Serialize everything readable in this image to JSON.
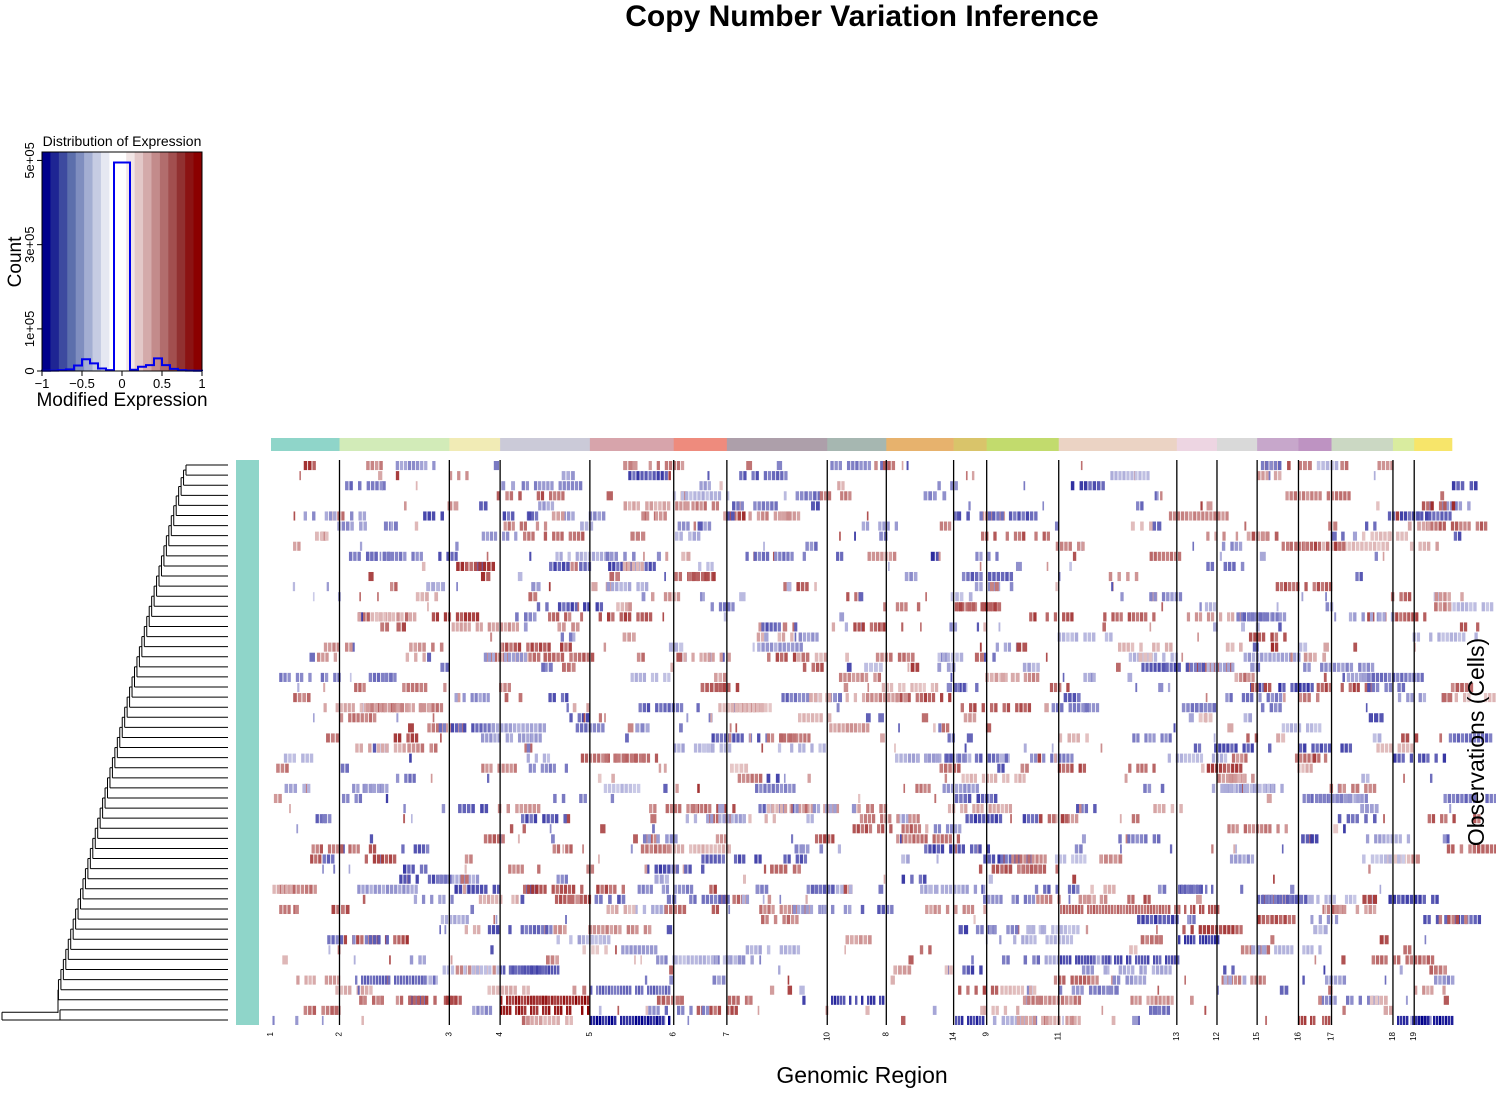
{
  "title": "Copy Number Variation Inference",
  "histogram": {
    "title": "Distribution of Expression",
    "xlabel": "Modified Expression",
    "ylabel": "Count",
    "x_ticks": [
      "−1",
      "−0.5",
      "0",
      "0.5",
      "1"
    ],
    "y_ticks": [
      "0",
      "1e+05",
      "3e+05",
      "5e+05"
    ]
  },
  "heatmap": {
    "xlabel": "Genomic Region",
    "ylabel": "Observations (Cells)"
  },
  "chart_data": [
    {
      "type": "bar",
      "title": "Distribution of Expression",
      "xlabel": "Modified Expression",
      "ylabel": "Count",
      "xlim": [
        -1,
        1
      ],
      "ylim": [
        0,
        520000
      ],
      "y_tick_values": [
        0,
        100000,
        300000,
        500000
      ],
      "x_tick_values": [
        -1,
        -0.5,
        0,
        0.5,
        1
      ],
      "bins": [
        -1,
        -0.9,
        -0.8,
        -0.7,
        -0.6,
        -0.5,
        -0.4,
        -0.3,
        -0.2,
        -0.1,
        0,
        0.1,
        0.2,
        0.3,
        0.4,
        0.5,
        0.6,
        0.7,
        0.8,
        0.9,
        1
      ],
      "counts": [
        500,
        1000,
        2000,
        4000,
        13000,
        28000,
        18000,
        6000,
        2000,
        495000,
        495000,
        3000,
        10000,
        14000,
        30000,
        14000,
        5000,
        2000,
        1000,
        500
      ],
      "background_colors": [
        "#00008B",
        "#1E2593",
        "#3D4A9F",
        "#5C6FAC",
        "#7F8EBF",
        "#A3AED2",
        "#C6CCE3",
        "#E6E8F2",
        "#FFFFFF",
        "#FFFFFF",
        "#F2E6E6",
        "#E3C8C8",
        "#D4AAAA",
        "#C38B8B",
        "#B26D6D",
        "#A24F4F",
        "#913131",
        "#8B1313",
        "#8B0000"
      ]
    },
    {
      "type": "heatmap",
      "title": "",
      "xlabel": "Genomic Region",
      "ylabel": "Observations (Cells)",
      "chromosome_order": [
        "1",
        "2",
        "3",
        "4",
        "5",
        "6",
        "7",
        "10",
        "8",
        "14",
        "9",
        "11",
        "13",
        "12",
        "15",
        "16",
        "17",
        "18",
        "19"
      ],
      "chromosome_colors": [
        "#8FD5C9",
        "#D2EBB8",
        "#F1EBB5",
        "#CBCAD8",
        "#D7A4AB",
        "#EE8B7D",
        "#AD9FAA",
        "#A6B7B1",
        "#E7B26D",
        "#D9C46A",
        "#C2DB6D",
        "#EBD3C4",
        "#EDD5E2",
        "#D9D9D9",
        "#C7A7CB",
        "#BE93C2",
        "#CBD8C3",
        "#D9EC9F",
        "#F7E56A"
      ],
      "chromosome_gene_fraction": [
        0.058,
        0.093,
        0.043,
        0.076,
        0.071,
        0.045,
        0.085,
        0.05,
        0.057,
        0.028,
        0.061,
        0.1,
        0.034,
        0.034,
        0.035,
        0.028,
        0.052,
        0.018,
        0.032
      ],
      "n_cells": 56,
      "value_range": [
        -1,
        1
      ],
      "cell_annotation_color": "#8FD5C9",
      "color_scale": [
        "#00008B",
        "#FFFFFF",
        "#8B0000"
      ]
    }
  ]
}
